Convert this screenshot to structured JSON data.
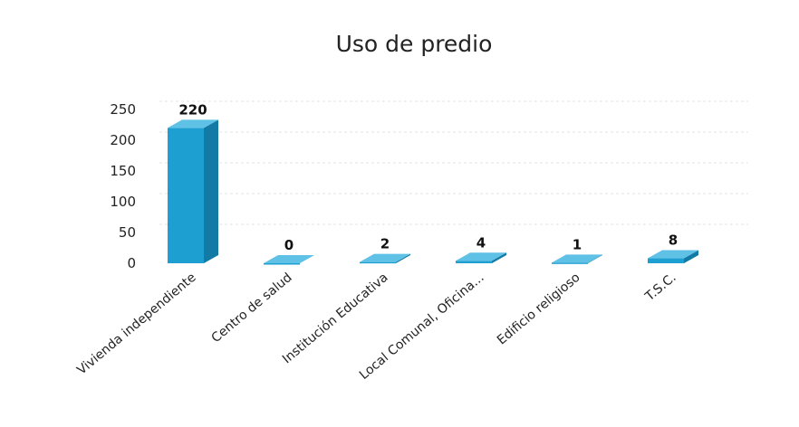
{
  "chart_data": {
    "type": "bar",
    "title": "Uso de predio",
    "categories": [
      "Vivienda independiente",
      "Centro de salud",
      "Institución Educativa",
      "Local Comunal, Oficina...",
      "Edificio religioso",
      "T.S.C."
    ],
    "values": [
      220,
      0,
      2,
      4,
      1,
      8
    ],
    "yticks": [
      0,
      50,
      100,
      150,
      200,
      250
    ],
    "ylim": [
      0,
      250
    ],
    "data_labels": true,
    "grid": true,
    "style": "3d-column",
    "colors": {
      "front": "#1e9fd1",
      "side": "#127aa4",
      "top": "#5fc1e6"
    }
  }
}
